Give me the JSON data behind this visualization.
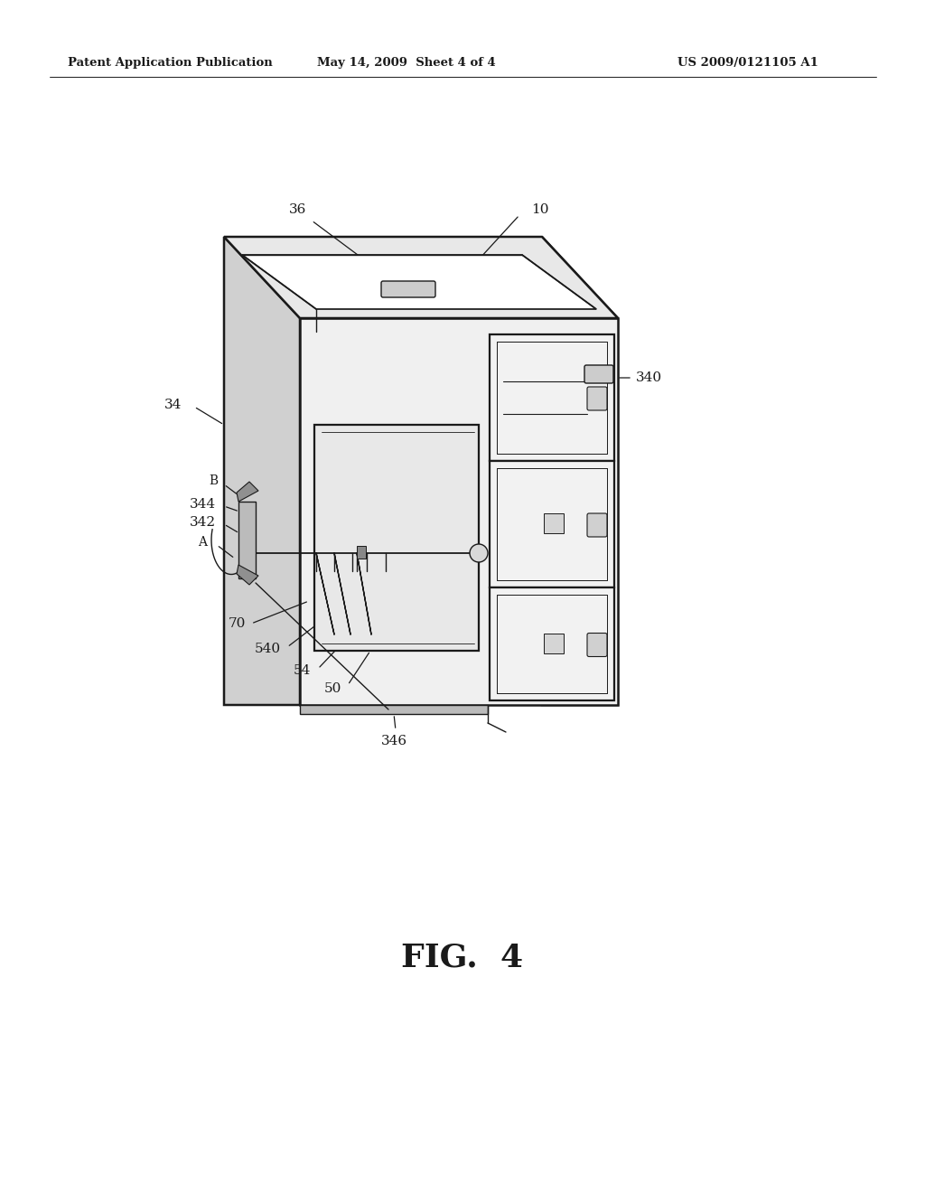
{
  "bg_color": "#ffffff",
  "lc": "#1a1a1a",
  "lw_main": 1.8,
  "lw_thin": 1.0,
  "lw_vt": 0.7,
  "header_left": "Patent Application Publication",
  "header_mid": "May 14, 2009  Sheet 4 of 4",
  "header_right": "US 2009/0121105 A1",
  "fig_label": "FIG.  4",
  "top_face_color": "#e8e8e8",
  "left_face_color": "#d0d0d0",
  "front_face_color": "#f0f0f0",
  "right_face_color": "#e0e0e0",
  "drive_face_color": "#f5f5f5",
  "tray_panel_color": "#e4e4e4",
  "inner_shadow": "#c8c8c8"
}
